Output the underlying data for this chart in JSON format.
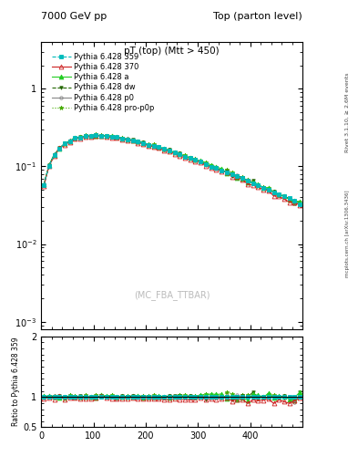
{
  "title_left": "7000 GeV pp",
  "title_right": "Top (parton level)",
  "plot_title": "pT (top) (Mtt > 450)",
  "watermark": "(MC_FBA_TTBAR)",
  "right_label_top": "Rivet 3.1.10, ≥ 2.6M events",
  "right_label_bottom": "mcplots.cern.ch [arXiv:1306.3436]",
  "ylabel_ratio": "Ratio to Pythia 6.428 359",
  "xlim": [
    0,
    500
  ],
  "ylim_main": [
    0.0008,
    4
  ],
  "ylim_ratio": [
    0.5,
    2.0
  ],
  "yticks_main": [
    0.001,
    0.01,
    0.1,
    1
  ],
  "ytick_labels_main": [
    "10$^{-3}$",
    "10$^{-2}$",
    "10$^{-1}$",
    "1"
  ],
  "yticks_ratio": [
    0.5,
    1.0,
    2.0
  ],
  "xticks": [
    0,
    100,
    200,
    300,
    400
  ],
  "series": [
    {
      "label": "Pythia 6.428 359",
      "color": "#00bbbb",
      "linestyle": "--",
      "marker": "s",
      "markersize": 2.5,
      "linewidth": 0.8,
      "markerfacecolor": "#00bbbb",
      "zorder": 6
    },
    {
      "label": "Pythia 6.428 370",
      "color": "#cc2222",
      "linestyle": "-",
      "marker": "^",
      "markersize": 3.5,
      "linewidth": 0.8,
      "markerfacecolor": "none",
      "zorder": 5
    },
    {
      "label": "Pythia 6.428 a",
      "color": "#22cc22",
      "linestyle": "-",
      "marker": "^",
      "markersize": 3.5,
      "linewidth": 0.8,
      "markerfacecolor": "#22cc22",
      "zorder": 4
    },
    {
      "label": "Pythia 6.428 dw",
      "color": "#226600",
      "linestyle": "--",
      "marker": "v",
      "markersize": 2.5,
      "linewidth": 0.8,
      "markerfacecolor": "#226600",
      "zorder": 3
    },
    {
      "label": "Pythia 6.428 p0",
      "color": "#888888",
      "linestyle": "-",
      "marker": "o",
      "markersize": 2.5,
      "linewidth": 0.8,
      "markerfacecolor": "none",
      "zorder": 2
    },
    {
      "label": "Pythia 6.428 pro-p0p",
      "color": "#44aa00",
      "linestyle": ":",
      "marker": "*",
      "markersize": 3.5,
      "linewidth": 0.8,
      "markerfacecolor": "#44aa00",
      "zorder": 1
    }
  ],
  "background_color": "#ffffff"
}
